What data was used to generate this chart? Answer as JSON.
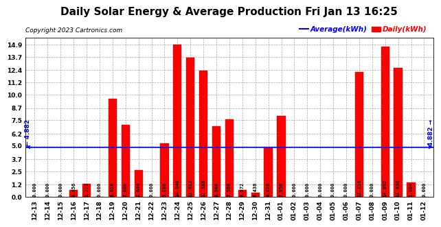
{
  "title": "Daily Solar Energy & Average Production Fri Jan 13 16:25",
  "copyright": "Copyright 2023 Cartronics.com",
  "legend_average": "Average(kWh)",
  "legend_daily": "Daily(kWh)",
  "average_value": 4.882,
  "categories": [
    "12-13",
    "12-14",
    "12-15",
    "12-16",
    "12-17",
    "12-18",
    "12-19",
    "12-20",
    "12-21",
    "12-22",
    "12-23",
    "12-24",
    "12-25",
    "12-26",
    "12-27",
    "12-28",
    "12-29",
    "12-30",
    "12-31",
    "01-01",
    "01-02",
    "01-03",
    "01-04",
    "01-05",
    "01-06",
    "01-07",
    "01-08",
    "01-09",
    "01-10",
    "01-11",
    "01-12"
  ],
  "values": [
    0.0,
    0.0,
    0.0,
    0.656,
    1.272,
    0.0,
    9.616,
    7.06,
    2.644,
    0.0,
    5.268,
    14.94,
    13.612,
    12.388,
    6.96,
    7.568,
    0.672,
    0.436,
    4.828,
    7.956,
    0.0,
    0.0,
    0.0,
    0.0,
    0.0,
    12.216,
    0.0,
    14.692,
    12.636,
    1.404,
    0.0
  ],
  "bar_color": "#FF0000",
  "bar_edge_color": "#CC0000",
  "average_line_color": "#0000FF",
  "average_label_color": "#0000FF",
  "background_color": "#FFFFFF",
  "grid_color": "#AAAAAA",
  "yticks": [
    0.0,
    1.2,
    2.5,
    3.7,
    5.0,
    6.2,
    7.5,
    8.7,
    10.0,
    11.2,
    12.4,
    13.7,
    14.9
  ],
  "ylim": [
    0.0,
    15.6
  ],
  "title_fontsize": 11,
  "copyright_fontsize": 6.5,
  "tick_label_fontsize": 6.5,
  "value_label_fontsize": 5.0,
  "average_annotation_fontsize": 6.5,
  "legend_fontsize": 7.5
}
